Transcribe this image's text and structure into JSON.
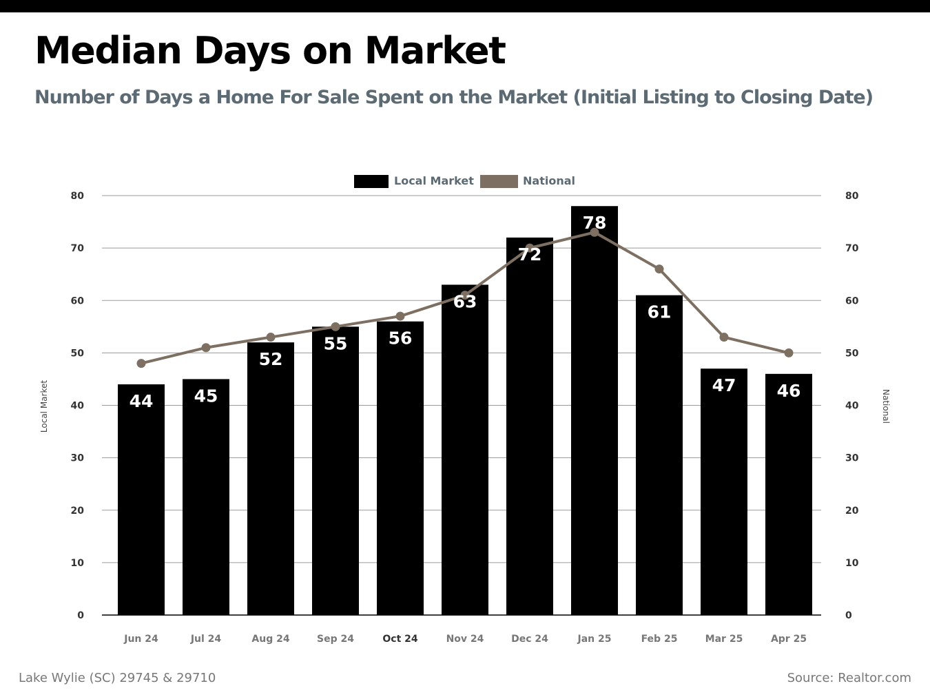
{
  "header": {
    "title": "Median Days on Market",
    "subtitle": "Number of Days a Home For Sale Spent on the Market (Initial Listing to Closing Date)"
  },
  "footer": {
    "location": "Lake Wylie (SC) 29745 & 29710",
    "source": "Source: Realtor.com"
  },
  "colors": {
    "local_bar": "#000000",
    "national_line": "#7d6f61",
    "grid": "#9a9a9a",
    "subtitle": "#5c6a73"
  },
  "chart_data": {
    "type": "bar",
    "categories": [
      "Jun 24",
      "Jul 24",
      "Aug 24",
      "Sep 24",
      "Oct 24",
      "Nov 24",
      "Dec 24",
      "Jan 25",
      "Feb 25",
      "Mar 25",
      "Apr 25"
    ],
    "series": [
      {
        "name": "Local Market",
        "type": "bar",
        "axis": "left",
        "values": [
          44,
          45,
          52,
          55,
          56,
          63,
          72,
          78,
          61,
          47,
          46
        ]
      },
      {
        "name": "National",
        "type": "line",
        "axis": "right",
        "values": [
          48,
          51,
          53,
          55,
          57,
          61,
          70,
          73,
          66,
          53,
          50
        ]
      }
    ],
    "ylabel_left": "Local Market",
    "ylabel_right": "National",
    "ylim": [
      0,
      80
    ],
    "yticks": [
      0,
      10,
      20,
      30,
      40,
      50,
      60,
      70,
      80
    ],
    "grid": true,
    "legend_position": "top-center",
    "data_labels": "bars"
  }
}
